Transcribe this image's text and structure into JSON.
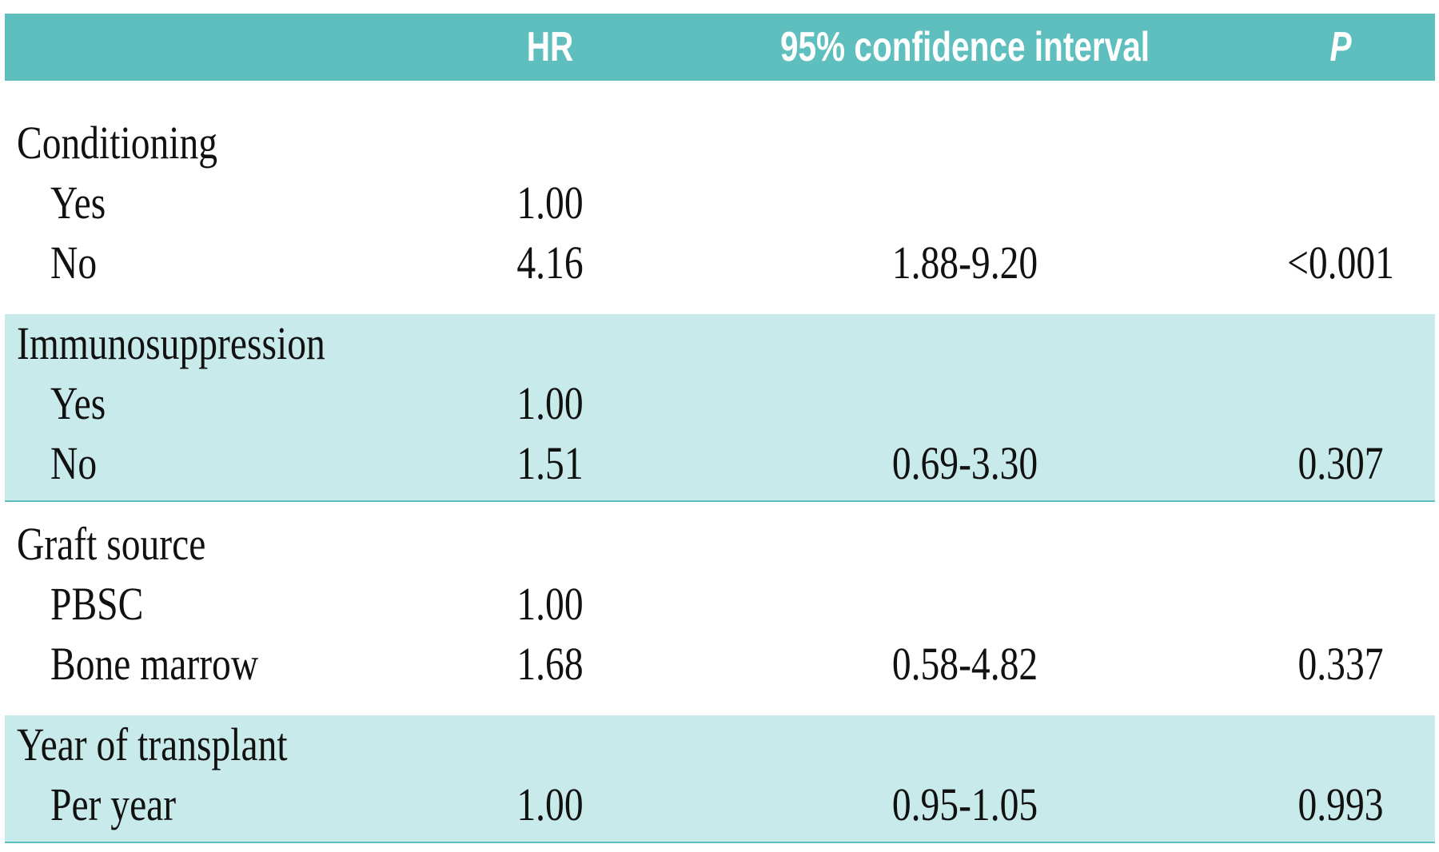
{
  "table": {
    "header": {
      "hr": "HR",
      "ci": "95% confidence interval",
      "p": "P"
    },
    "groups": [
      {
        "label": "Conditioning",
        "rows": [
          {
            "label": "Yes",
            "hr": "1.00"
          },
          {
            "label": "No",
            "hr": "4.16",
            "ci": "1.88-9.20",
            "p": "<0.001"
          }
        ]
      },
      {
        "label": "Immunosuppression",
        "rows": [
          {
            "label": "Yes",
            "hr": "1.00"
          },
          {
            "label": "No",
            "hr": "1.51",
            "ci": "0.69-3.30",
            "p": "0.307"
          }
        ]
      },
      {
        "label": "Graft source",
        "rows": [
          {
            "label": "PBSC",
            "hr": "1.00"
          },
          {
            "label": "Bone marrow",
            "hr": "1.68",
            "ci": "0.58-4.82",
            "p": "0.337"
          }
        ]
      },
      {
        "label": "Year of transplant",
        "rows": [
          {
            "label": "Per year",
            "hr": "1.00",
            "ci": "0.95-1.05",
            "p": "0.993"
          }
        ]
      }
    ]
  }
}
